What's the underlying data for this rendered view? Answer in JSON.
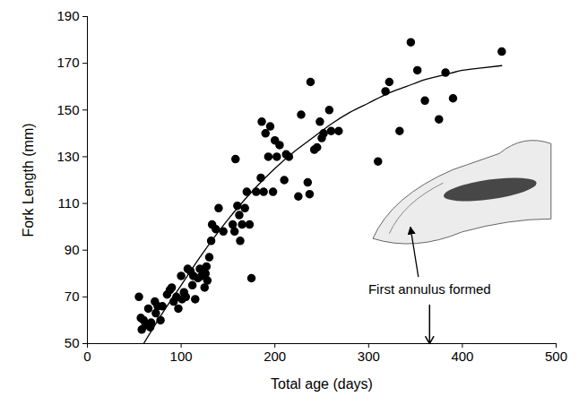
{
  "chart_data": {
    "type": "scatter",
    "xlabel": "Total age (days)",
    "ylabel": "Fork Length (mm)",
    "xlim": [
      0,
      500
    ],
    "xticks": [
      0,
      100,
      200,
      300,
      400,
      500
    ],
    "ylim": [
      50,
      190
    ],
    "yticks": [
      50,
      70,
      90,
      110,
      130,
      150,
      170,
      190
    ],
    "grid": false,
    "series": [
      {
        "type": "scatter",
        "color": "#000000",
        "marker": "circle",
        "x": [
          55,
          57,
          58,
          60,
          62,
          65,
          67,
          68,
          72,
          73,
          75,
          78,
          80,
          85,
          88,
          90,
          92,
          95,
          97,
          100,
          101,
          103,
          105,
          107,
          110,
          112,
          113,
          115,
          118,
          120,
          122,
          125,
          126,
          127,
          128,
          130,
          132,
          133,
          137,
          140,
          145,
          155,
          157,
          158,
          160,
          162,
          163,
          165,
          168,
          170,
          173,
          175,
          180,
          185,
          186,
          188,
          190,
          193,
          195,
          198,
          200,
          202,
          205,
          210,
          212,
          215,
          225,
          228,
          235,
          237,
          238,
          242,
          245,
          248,
          250,
          252,
          258,
          260,
          268,
          310,
          318,
          322,
          333,
          345,
          352,
          360,
          375,
          382,
          390,
          442
        ],
        "values": [
          70,
          61,
          56,
          60,
          58,
          65,
          57,
          59,
          68,
          63,
          66,
          60,
          66,
          71,
          73,
          74,
          68,
          70,
          65,
          79,
          69,
          72,
          70,
          82,
          81,
          75,
          79,
          69,
          78,
          82,
          79,
          74,
          80,
          83,
          77,
          87,
          94,
          101,
          99,
          108,
          98,
          101,
          98,
          129,
          109,
          105,
          94,
          101,
          108,
          115,
          101,
          78,
          115,
          121,
          145,
          115,
          140,
          130,
          143,
          115,
          137,
          130,
          135,
          120,
          131,
          130,
          113,
          148,
          119,
          114,
          162,
          133,
          134,
          145,
          138,
          140,
          150,
          141,
          141,
          128,
          158,
          162,
          141,
          179,
          167,
          154,
          146,
          166,
          155,
          175
        ]
      },
      {
        "type": "line",
        "color": "#000000",
        "line_style": "solid",
        "x": [
          60,
          80,
          100,
          120,
          140,
          160,
          180,
          200,
          220,
          240,
          260,
          280,
          300,
          320,
          340,
          360,
          380,
          400,
          420,
          442
        ],
        "values": [
          50,
          63,
          75,
          87,
          98,
          108,
          117,
          125,
          132,
          138,
          144,
          149,
          153,
          157,
          160,
          163,
          165,
          167,
          168,
          169
        ]
      }
    ],
    "annotations": [
      {
        "text": "First annulus formed",
        "x": 365
      }
    ]
  }
}
